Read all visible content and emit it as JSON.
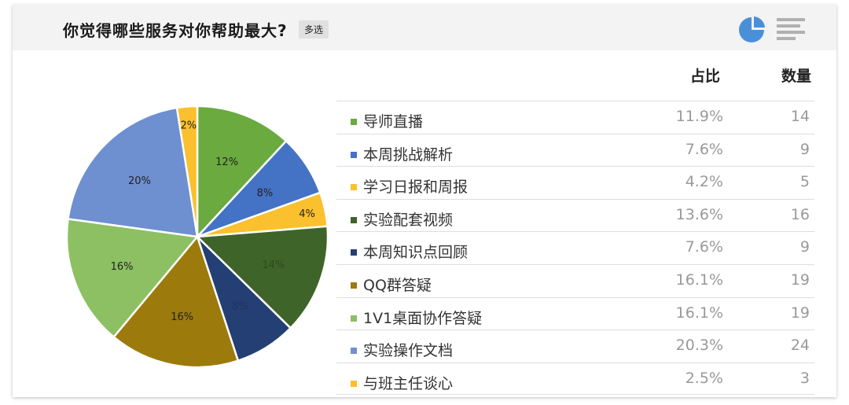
{
  "header": {
    "title": "你觉得哪些服务对你帮助最大?",
    "badge": "多选"
  },
  "icons": {
    "pie_view": "pie-chart-icon",
    "list_view": "bar-list-icon",
    "pie_color": "#4a90d9",
    "list_color": "#b0b0b0"
  },
  "table": {
    "col_pct": "占比",
    "col_count": "数量"
  },
  "chart_data": {
    "type": "pie",
    "start_angle_deg": 0,
    "direction": "clockwise",
    "series": [
      {
        "name": "导师直播",
        "pct": "11.9%",
        "count": "14",
        "value": 11.9,
        "slice_label": "12%",
        "color": "#6aaa3f",
        "label_color": "#222"
      },
      {
        "name": "本周挑战解析",
        "pct": "7.6%",
        "count": "9",
        "value": 7.6,
        "slice_label": "8%",
        "color": "#4472c4",
        "label_color": "#222"
      },
      {
        "name": "学习日报和周报",
        "pct": "4.2%",
        "count": "5",
        "value": 4.2,
        "slice_label": "4%",
        "color": "#fbc02d",
        "label_color": "#222"
      },
      {
        "name": "实验配套视频",
        "pct": "13.6%",
        "count": "16",
        "value": 13.6,
        "slice_label": "14%",
        "color": "#3f6429",
        "label_color": "#2d4a1e"
      },
      {
        "name": "本周知识点回顾",
        "pct": "7.6%",
        "count": "9",
        "value": 7.6,
        "slice_label": "8%",
        "color": "#233f73",
        "label_color": "#1e3560"
      },
      {
        "name": "QQ群答疑",
        "pct": "16.1%",
        "count": "19",
        "value": 16.1,
        "slice_label": "16%",
        "color": "#9c7a0c",
        "label_color": "#222"
      },
      {
        "name": "1V1桌面协作答疑",
        "pct": "16.1%",
        "count": "19",
        "value": 16.1,
        "slice_label": "16%",
        "color": "#8cc063",
        "label_color": "#222"
      },
      {
        "name": "实验操作文档",
        "pct": "20.3%",
        "count": "24",
        "value": 20.3,
        "slice_label": "20%",
        "color": "#6e8fd0",
        "label_color": "#222"
      },
      {
        "name": "与班主任谈心",
        "pct": "2.5%",
        "count": "3",
        "value": 2.5,
        "slice_label": "2%",
        "color": "#fbc02d",
        "label_color": "#222"
      }
    ]
  }
}
